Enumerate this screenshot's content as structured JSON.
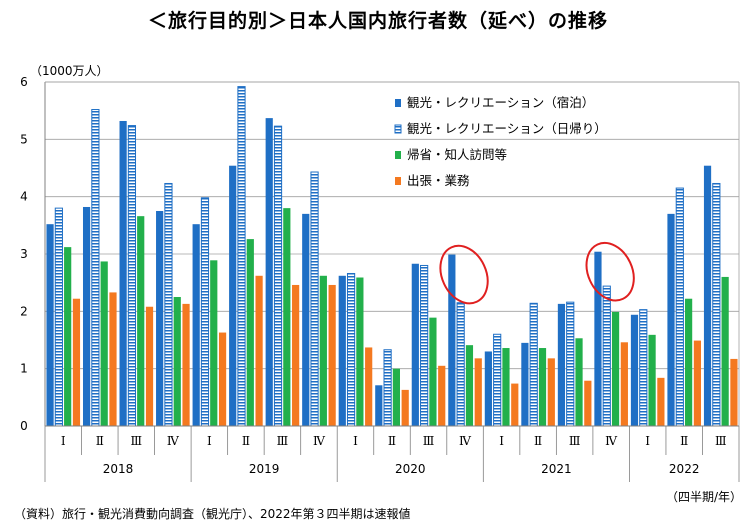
{
  "title": "＜旅行目的別＞日本人国内旅行者数（延べ）の推移",
  "unit_label": "（1000万人）",
  "quarter_axis_note": "（四半期/年）",
  "source_note": "（資料）旅行・観光消費動向調査（観光庁）、2022年第３四半期は速報値",
  "colors": {
    "leisure_stay": "#1f6fc5",
    "leisure_day": "#1f6fc5",
    "family_visit": "#22b04b",
    "business": "#f47920",
    "highlight_circle": "#e02020",
    "axis": "#808080",
    "grid": "#a0a0a0"
  },
  "chart_data": {
    "type": "bar",
    "ylim": [
      0,
      6
    ],
    "yticks": [
      "0",
      "1",
      "2",
      "3",
      "4",
      "5",
      "6"
    ],
    "grid": true,
    "legend_position": "top-right",
    "years": [
      "2018",
      "2019",
      "2020",
      "2021",
      "2022"
    ],
    "quarters_per_year": [
      4,
      4,
      4,
      4,
      3
    ],
    "categories": [
      "Ⅰ",
      "Ⅱ",
      "Ⅲ",
      "Ⅳ",
      "Ⅰ",
      "Ⅱ",
      "Ⅲ",
      "Ⅳ",
      "Ⅰ",
      "Ⅱ",
      "Ⅲ",
      "Ⅳ",
      "Ⅰ",
      "Ⅱ",
      "Ⅲ",
      "Ⅳ",
      "Ⅰ",
      "Ⅱ",
      "Ⅲ"
    ],
    "series": [
      {
        "name": "観光・レクリエーション（宿泊）",
        "pattern": "solid",
        "values": [
          3.52,
          3.82,
          5.32,
          3.75,
          3.52,
          4.54,
          5.37,
          3.7,
          2.62,
          0.71,
          2.83,
          2.99,
          1.3,
          1.45,
          2.13,
          3.04,
          1.94,
          3.7,
          4.54
        ]
      },
      {
        "name": "観光・レクリエーション（日帰り）",
        "pattern": "striped",
        "values": [
          3.8,
          5.52,
          5.24,
          4.23,
          3.98,
          5.92,
          5.23,
          4.43,
          2.66,
          1.33,
          2.8,
          2.15,
          1.6,
          2.14,
          2.16,
          2.44,
          2.03,
          4.15,
          4.23
        ]
      },
      {
        "name": "帰省・知人訪問等",
        "pattern": "solid",
        "values": [
          3.12,
          2.87,
          3.66,
          2.25,
          2.89,
          3.26,
          3.8,
          2.62,
          2.59,
          1.0,
          1.89,
          1.41,
          1.36,
          1.36,
          1.53,
          1.99,
          1.59,
          2.22,
          2.6
        ]
      },
      {
        "name": "出張・業務",
        "pattern": "solid",
        "values": [
          2.22,
          2.33,
          2.08,
          2.13,
          1.63,
          2.62,
          2.46,
          2.46,
          1.37,
          0.63,
          1.05,
          1.18,
          0.74,
          1.18,
          0.79,
          1.46,
          0.84,
          1.49,
          1.17
        ]
      }
    ],
    "highlight_quarters": [
      11,
      15
    ]
  }
}
